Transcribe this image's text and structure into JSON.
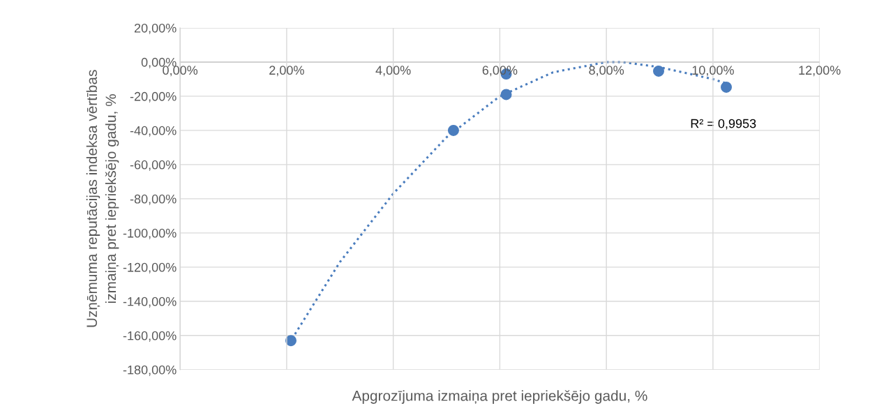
{
  "chart_data": {
    "type": "scatter",
    "xlabel": "Apgrozījuma izmaiņa pret iepriekšējo gadu, %",
    "ylabel": "Uzņēmuma reputācijas indeksa vērtības\nizmaiņa pret iepriekšējo gadu, %",
    "x": [
      2.08,
      5.13,
      6.12,
      6.12,
      8.98,
      10.25
    ],
    "series": [
      {
        "color": "#4a7dbe",
        "marker": "circle",
        "values": [
          -163,
          -40,
          -7,
          -19,
          -5.3,
          -14.7
        ]
      },
      {
        "type": "line",
        "color": "#4a7dbe",
        "line_style": "dotted",
        "marker": "none",
        "x": [
          2.1,
          3,
          4,
          5,
          6,
          7,
          8,
          8.3,
          9,
          10,
          10.3
        ],
        "values": [
          -162,
          -117,
          -77,
          -44,
          -20,
          -6,
          0,
          0,
          -3,
          -10,
          -13
        ]
      }
    ],
    "xlim": [
      0,
      12
    ],
    "ylim": [
      -180,
      20
    ],
    "xticks": [
      {
        "value": 0,
        "label": "0,00%"
      },
      {
        "value": 2,
        "label": "2,00%"
      },
      {
        "value": 4,
        "label": "4,00%"
      },
      {
        "value": 6,
        "label": "6,00%"
      },
      {
        "value": 8,
        "label": "8,00%"
      },
      {
        "value": 10,
        "label": "10,00%"
      },
      {
        "value": 12,
        "label": "12,00%"
      }
    ],
    "yticks": [
      {
        "value": 20,
        "label": "20,00%"
      },
      {
        "value": 0,
        "label": "0,00%"
      },
      {
        "value": -20,
        "label": "-20,00%"
      },
      {
        "value": -40,
        "label": "-40,00%"
      },
      {
        "value": -60,
        "label": "-60,00%"
      },
      {
        "value": -80,
        "label": "-80,00%"
      },
      {
        "value": -100,
        "label": "-100,00%"
      },
      {
        "value": -120,
        "label": "-120,00%"
      },
      {
        "value": -140,
        "label": "-140,00%"
      },
      {
        "value": -160,
        "label": "-160,00%"
      },
      {
        "value": -180,
        "label": "-180,00%"
      }
    ],
    "grid": true,
    "legend": false,
    "annotations": [
      {
        "text": "R² = 0,9953",
        "x": 10.3,
        "y": -13
      }
    ]
  }
}
